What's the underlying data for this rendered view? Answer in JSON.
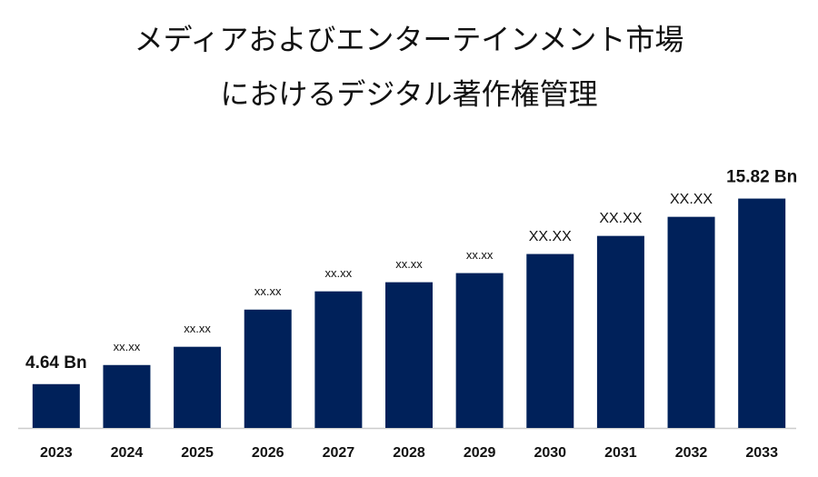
{
  "chart_data": {
    "type": "bar",
    "title": [
      "メディアおよびエンターテインメント市場",
      "におけるデジタル著作権管理"
    ],
    "categories": [
      "2023",
      "2024",
      "2025",
      "2026",
      "2027",
      "2028",
      "2029",
      "2030",
      "2031",
      "2032",
      "2033"
    ],
    "values": [
      4.64,
      5.79,
      6.89,
      9.13,
      10.23,
      10.78,
      11.33,
      12.48,
      13.57,
      14.72,
      15.82
    ],
    "value_labels": [
      "4.64 Bn",
      "xx.xx",
      "xx.xx",
      "xx.xx",
      "xx.xx",
      "xx.xx",
      "xx.xx",
      "XX.XX",
      "XX.XX",
      "XX.XX",
      "15.82 Bn"
    ],
    "color": "#00215a",
    "ylim": [
      2,
      17
    ]
  }
}
